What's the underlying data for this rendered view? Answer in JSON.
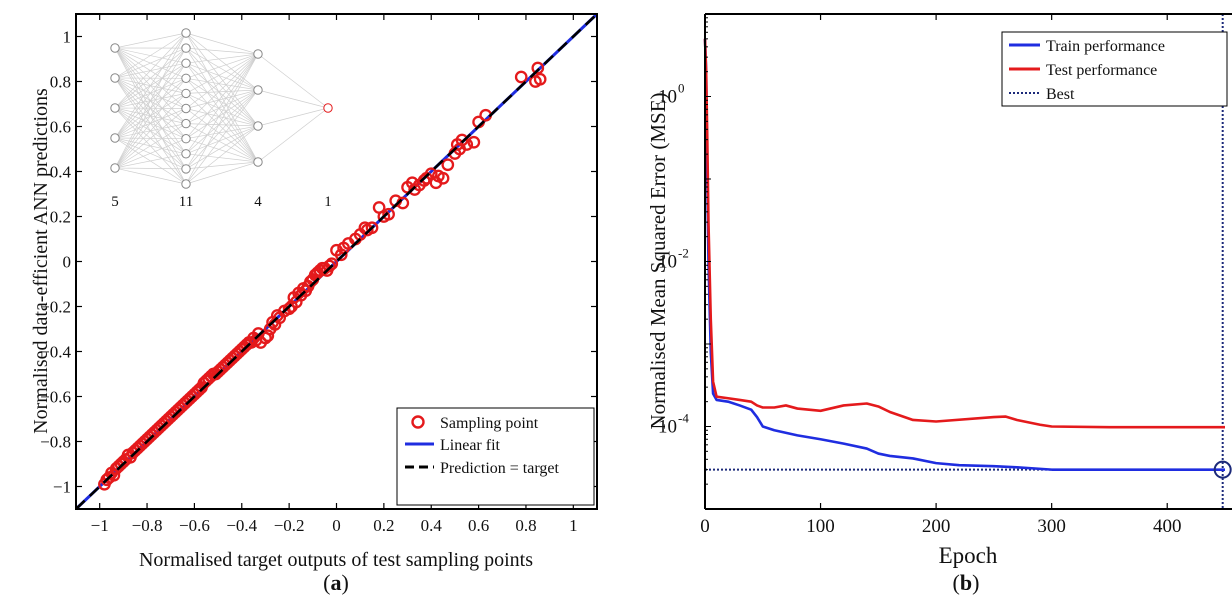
{
  "panels": [
    {
      "prefix": "(",
      "letter": "a",
      "suffix": ")"
    },
    {
      "prefix": "(",
      "letter": "b",
      "suffix": ")"
    }
  ],
  "chart_data": [
    {
      "type": "scatter",
      "xlabel": "Normalised target outputs of test sampling points",
      "ylabel": "Normalised data-efficient ANN predictions",
      "xlim": [
        -1.1,
        1.1
      ],
      "ylim": [
        -1.1,
        1.1
      ],
      "xticks": [
        -1,
        -0.8,
        -0.6,
        -0.4,
        -0.2,
        0,
        0.2,
        0.4,
        0.6,
        0.8,
        1
      ],
      "yticks": [
        -1,
        -0.8,
        -0.6,
        -0.4,
        -0.2,
        0,
        0.2,
        0.4,
        0.6,
        0.8,
        1
      ],
      "xtick_labels": [
        "−1",
        "−0.8",
        "−0.6",
        "−0.4",
        "−0.2",
        "0",
        "0.2",
        "0.4",
        "0.6",
        "0.8",
        "1"
      ],
      "ytick_labels": [
        "−1",
        "−0.8",
        "−0.6",
        "−0.4",
        "−0.2",
        "0",
        "0.2",
        "0.4",
        "0.6",
        "0.8",
        "1"
      ],
      "grid": false,
      "legend": {
        "position": "bottom-right",
        "entries": [
          "Sampling point",
          "Linear fit",
          "Prediction = target"
        ]
      },
      "colors": {
        "points": "#e41a1c",
        "fit": "#1f2de0",
        "target": "#000000"
      },
      "linear_fit": {
        "slope": 1.0,
        "intercept": 0.0
      },
      "inset_network": {
        "layers": [
          5,
          11,
          4,
          1
        ],
        "labels": [
          "5",
          "11",
          "4",
          "1"
        ]
      },
      "series": [
        {
          "name": "Sampling point",
          "points": [
            [
              -0.98,
              -0.99
            ],
            [
              -0.97,
              -0.97
            ],
            [
              -0.96,
              -0.96
            ],
            [
              -0.95,
              -0.94
            ],
            [
              -0.94,
              -0.95
            ],
            [
              -0.93,
              -0.92
            ],
            [
              -0.92,
              -0.91
            ],
            [
              -0.91,
              -0.9
            ],
            [
              -0.9,
              -0.89
            ],
            [
              -0.89,
              -0.88
            ],
            [
              -0.88,
              -0.86
            ],
            [
              -0.87,
              -0.87
            ],
            [
              -0.86,
              -0.85
            ],
            [
              -0.85,
              -0.84
            ],
            [
              -0.84,
              -0.83
            ],
            [
              -0.83,
              -0.82
            ],
            [
              -0.82,
              -0.81
            ],
            [
              -0.81,
              -0.8
            ],
            [
              -0.8,
              -0.79
            ],
            [
              -0.79,
              -0.78
            ],
            [
              -0.78,
              -0.77
            ],
            [
              -0.77,
              -0.76
            ],
            [
              -0.76,
              -0.75
            ],
            [
              -0.75,
              -0.74
            ],
            [
              -0.74,
              -0.73
            ],
            [
              -0.73,
              -0.72
            ],
            [
              -0.72,
              -0.71
            ],
            [
              -0.71,
              -0.7
            ],
            [
              -0.7,
              -0.69
            ],
            [
              -0.69,
              -0.68
            ],
            [
              -0.68,
              -0.67
            ],
            [
              -0.67,
              -0.66
            ],
            [
              -0.66,
              -0.65
            ],
            [
              -0.65,
              -0.64
            ],
            [
              -0.64,
              -0.63
            ],
            [
              -0.63,
              -0.62
            ],
            [
              -0.62,
              -0.61
            ],
            [
              -0.61,
              -0.6
            ],
            [
              -0.6,
              -0.59
            ],
            [
              -0.59,
              -0.58
            ],
            [
              -0.58,
              -0.57
            ],
            [
              -0.57,
              -0.56
            ],
            [
              -0.56,
              -0.54
            ],
            [
              -0.55,
              -0.53
            ],
            [
              -0.54,
              -0.52
            ],
            [
              -0.53,
              -0.51
            ],
            [
              -0.52,
              -0.5
            ],
            [
              -0.51,
              -0.5
            ],
            [
              -0.5,
              -0.49
            ],
            [
              -0.49,
              -0.48
            ],
            [
              -0.48,
              -0.47
            ],
            [
              -0.47,
              -0.46
            ],
            [
              -0.46,
              -0.45
            ],
            [
              -0.45,
              -0.44
            ],
            [
              -0.44,
              -0.43
            ],
            [
              -0.43,
              -0.42
            ],
            [
              -0.42,
              -0.41
            ],
            [
              -0.41,
              -0.4
            ],
            [
              -0.4,
              -0.39
            ],
            [
              -0.39,
              -0.38
            ],
            [
              -0.38,
              -0.37
            ],
            [
              -0.37,
              -0.36
            ],
            [
              -0.36,
              -0.36
            ],
            [
              -0.35,
              -0.34
            ],
            [
              -0.34,
              -0.35
            ],
            [
              -0.33,
              -0.32
            ],
            [
              -0.32,
              -0.36
            ],
            [
              -0.3,
              -0.34
            ],
            [
              -0.29,
              -0.33
            ],
            [
              -0.28,
              -0.3
            ],
            [
              -0.27,
              -0.27
            ],
            [
              -0.26,
              -0.28
            ],
            [
              -0.25,
              -0.24
            ],
            [
              -0.24,
              -0.25
            ],
            [
              -0.22,
              -0.22
            ],
            [
              -0.2,
              -0.21
            ],
            [
              -0.19,
              -0.2
            ],
            [
              -0.18,
              -0.16
            ],
            [
              -0.17,
              -0.18
            ],
            [
              -0.16,
              -0.14
            ],
            [
              -0.15,
              -0.15
            ],
            [
              -0.14,
              -0.12
            ],
            [
              -0.13,
              -0.13
            ],
            [
              -0.12,
              -0.11
            ],
            [
              -0.11,
              -0.09
            ],
            [
              -0.1,
              -0.08
            ],
            [
              -0.09,
              -0.06
            ],
            [
              -0.08,
              -0.05
            ],
            [
              -0.07,
              -0.04
            ],
            [
              -0.06,
              -0.03
            ],
            [
              -0.05,
              -0.03
            ],
            [
              -0.04,
              -0.04
            ],
            [
              -0.03,
              -0.02
            ],
            [
              -0.02,
              -0.01
            ],
            [
              0.0,
              0.05
            ],
            [
              0.02,
              0.03
            ],
            [
              0.03,
              0.06
            ],
            [
              0.05,
              0.08
            ],
            [
              0.08,
              0.1
            ],
            [
              0.1,
              0.12
            ],
            [
              0.12,
              0.15
            ],
            [
              0.13,
              0.14
            ],
            [
              0.15,
              0.15
            ],
            [
              0.18,
              0.24
            ],
            [
              0.2,
              0.2
            ],
            [
              0.22,
              0.21
            ],
            [
              0.25,
              0.27
            ],
            [
              0.28,
              0.26
            ],
            [
              0.3,
              0.33
            ],
            [
              0.32,
              0.35
            ],
            [
              0.33,
              0.32
            ],
            [
              0.35,
              0.34
            ],
            [
              0.37,
              0.36
            ],
            [
              0.38,
              0.37
            ],
            [
              0.4,
              0.39
            ],
            [
              0.42,
              0.35
            ],
            [
              0.43,
              0.38
            ],
            [
              0.45,
              0.37
            ],
            [
              0.47,
              0.43
            ],
            [
              0.5,
              0.48
            ],
            [
              0.51,
              0.52
            ],
            [
              0.52,
              0.5
            ],
            [
              0.53,
              0.54
            ],
            [
              0.55,
              0.52
            ],
            [
              0.58,
              0.53
            ],
            [
              0.6,
              0.62
            ],
            [
              0.63,
              0.65
            ],
            [
              0.78,
              0.82
            ],
            [
              0.84,
              0.8
            ],
            [
              0.85,
              0.86
            ],
            [
              0.86,
              0.81
            ]
          ]
        },
        {
          "name": "Linear fit",
          "x": [
            -1.1,
            1.1
          ],
          "y": [
            -1.1,
            1.1
          ]
        },
        {
          "name": "Prediction = target",
          "x": [
            -1.1,
            1.1
          ],
          "y": [
            -1.1,
            1.1
          ]
        }
      ]
    },
    {
      "type": "line",
      "xlabel": "Epoch",
      "ylabel": "Normalised Mean Squared Error (MSE)",
      "xlim": [
        0,
        450
      ],
      "ylim": [
        1e-05,
        10
      ],
      "yscale": "log",
      "xticks": [
        0,
        100,
        200,
        300,
        400
      ],
      "xtick_labels": [
        "0",
        "100",
        "200",
        "300",
        "400"
      ],
      "yticks": [
        0.0001,
        0.01,
        1
      ],
      "ytick_labels": [
        {
          "base": "10",
          "exp": "-4"
        },
        {
          "base": "10",
          "exp": "-2"
        },
        {
          "base": "10",
          "exp": "0"
        }
      ],
      "grid": false,
      "legend": {
        "position": "top-right",
        "entries": [
          "Train performance",
          "Test performance",
          "Best"
        ]
      },
      "colors": {
        "train": "#1f2de0",
        "test": "#e41a1c",
        "best": "#1c2a7a"
      },
      "best": {
        "epoch": 448,
        "value": 3e-05
      },
      "series": [
        {
          "name": "Train performance",
          "x": [
            0,
            1,
            2,
            3,
            5,
            7,
            10,
            20,
            30,
            40,
            45,
            50,
            60,
            80,
            100,
            120,
            140,
            150,
            160,
            180,
            200,
            220,
            250,
            270,
            300,
            350,
            400,
            450
          ],
          "y": [
            5,
            2,
            0.1,
            0.01,
            0.0008,
            0.00025,
            0.00021,
            0.0002,
            0.00018,
            0.00016,
            0.00013,
            0.0001,
            9e-05,
            7.8e-05,
            7e-05,
            6.2e-05,
            5.4e-05,
            4.7e-05,
            4.4e-05,
            4.1e-05,
            3.6e-05,
            3.4e-05,
            3.3e-05,
            3.2e-05,
            3e-05,
            3e-05,
            3e-05,
            3e-05
          ]
        },
        {
          "name": "Test performance",
          "x": [
            0,
            1,
            2,
            3,
            5,
            7,
            10,
            20,
            30,
            40,
            45,
            50,
            60,
            70,
            80,
            100,
            120,
            140,
            150,
            160,
            180,
            200,
            250,
            260,
            270,
            290,
            300,
            350,
            400,
            450
          ],
          "y": [
            5,
            2,
            0.3,
            0.03,
            0.002,
            0.00035,
            0.00023,
            0.00022,
            0.00021,
            0.0002,
            0.00018,
            0.00017,
            0.00017,
            0.00018,
            0.000165,
            0.000155,
            0.00018,
            0.00019,
            0.000175,
            0.00015,
            0.00012,
            0.000115,
            0.00013,
            0.000132,
            0.00012,
            0.000105,
            0.0001,
            9.8e-05,
            9.8e-05,
            9.8e-05
          ]
        },
        {
          "name": "Best",
          "x": [
            0,
            450
          ],
          "y": [
            3e-05,
            3e-05
          ]
        }
      ]
    }
  ]
}
